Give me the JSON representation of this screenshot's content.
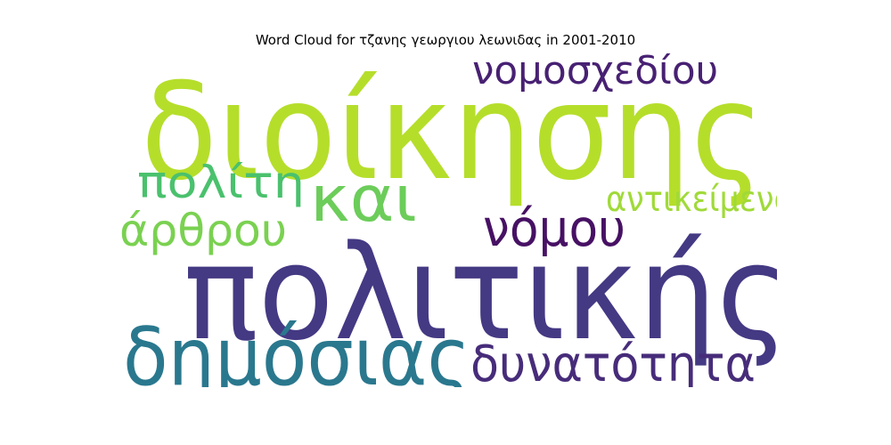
{
  "chart_data": {
    "type": "wordcloud",
    "title": "Word Cloud for τζανης γεωργιου λεωνιδας in 2001-2010",
    "words": [
      {
        "text": "διοίκησης",
        "color": "#b5de2b",
        "relative_size": 1.0
      },
      {
        "text": "πολιτικής",
        "color": "#443983",
        "relative_size": 0.98
      },
      {
        "text": "δημόσιας",
        "color": "#2a788e",
        "relative_size": 0.6
      },
      {
        "text": "και",
        "color": "#6ccd5a",
        "relative_size": 0.47
      },
      {
        "text": "νόμου",
        "color": "#471164",
        "relative_size": 0.38
      },
      {
        "text": "δυνατότητα",
        "color": "#472c7a",
        "relative_size": 0.37
      },
      {
        "text": "άρθρου",
        "color": "#7ad151",
        "relative_size": 0.33
      },
      {
        "text": "πολίτη",
        "color": "#4ac16d",
        "relative_size": 0.33
      },
      {
        "text": "νομοσχεδίου",
        "color": "#482173",
        "relative_size": 0.29
      },
      {
        "text": "αντικείμενο",
        "color": "#a0da39",
        "relative_size": 0.26
      }
    ]
  }
}
